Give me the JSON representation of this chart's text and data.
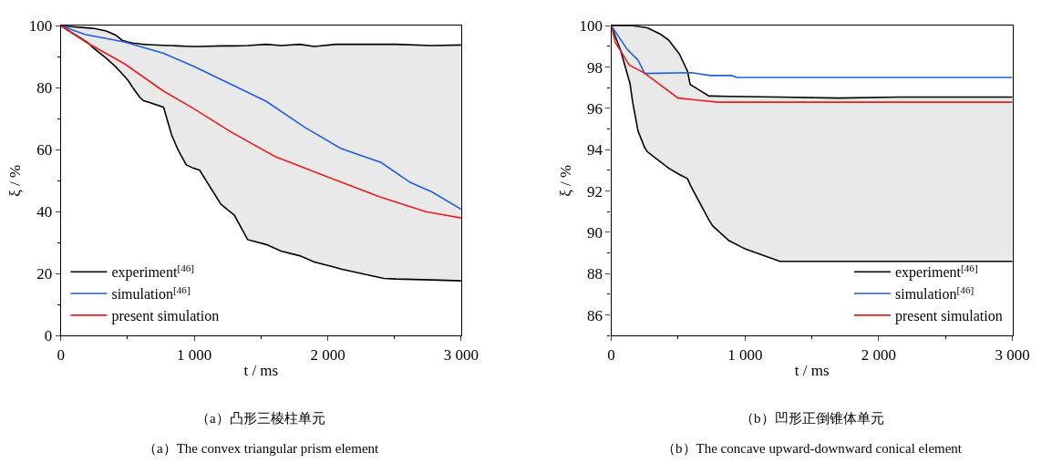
{
  "chart_data": [
    {
      "type": "line",
      "xlabel": "t / ms",
      "ylabel": "ξ / %",
      "xlim": [
        0,
        3000
      ],
      "xticks": [
        0,
        {
          "value": 1000,
          "label": "1 000"
        },
        {
          "value": 2000,
          "label": "2 000"
        },
        {
          "value": 3000,
          "label": "3 000"
        }
      ],
      "ylim": [
        0,
        100
      ],
      "yticks": [
        0,
        20,
        40,
        60,
        80,
        100
      ],
      "legend": "bottom left",
      "line_style": "solid",
      "marker": "none",
      "annotations": [
        "（a）凸形三棱柱单元",
        "（a）The convex triangular prism element"
      ],
      "series": [
        {
          "name": "experiment$^{[46]}$",
          "color": "#000000",
          "x": [
            0,
            200,
            250,
            340,
            410,
            460,
            500,
            540,
            590,
            620,
            660,
            770,
            830,
            880,
            940,
            990,
            1040,
            1200,
            1300,
            1400,
            1540,
            1650,
            1790,
            1900,
            2060,
            2100,
            2420,
            2510,
            2780,
            3000
          ],
          "values": [
            100,
            99.3,
            99.1,
            98.3,
            97,
            95.3,
            94.8,
            94.4,
            94.2,
            94.0,
            93.9,
            93.7,
            93.6,
            93.5,
            93.4,
            93.3,
            93.3,
            93.5,
            93.5,
            93.6,
            94,
            93.6,
            94,
            93.3,
            94,
            94,
            94,
            94,
            93.6,
            93.8
          ],
          "upper": [
            100,
            99.3,
            99.1,
            98.3,
            97,
            95.3,
            94.8,
            94.4,
            94.2,
            94.0,
            93.9,
            93.7,
            93.6,
            93.5,
            93.4,
            93.3,
            93.3,
            93.5,
            93.5,
            93.6,
            94,
            93.6,
            94,
            93.3,
            94,
            94,
            94,
            94,
            93.6,
            93.8
          ],
          "lower": [
            100,
            94.6,
            92.6,
            89.5,
            86.8,
            84.5,
            82.6,
            80,
            77,
            75.8,
            75.3,
            73.7,
            64.8,
            59.8,
            55.1,
            54.1,
            53.4,
            42.4,
            38.9,
            31,
            29.4,
            27.3,
            25.8,
            23.8,
            22,
            21.5,
            18.5,
            18.3,
            18,
            17.7
          ]
        },
        {
          "color": "#000000",
          "x": [
            0,
            200,
            250,
            340,
            410,
            460,
            500,
            540,
            590,
            620,
            660,
            770,
            830,
            880,
            940,
            990,
            1040,
            1200,
            1300,
            1400,
            1540,
            1650,
            1790,
            1900,
            2060,
            2100,
            2420,
            2510,
            2780,
            3000
          ],
          "values": [
            100,
            94.6,
            92.6,
            89.5,
            86.8,
            84.5,
            82.6,
            80,
            77,
            75.8,
            75.3,
            73.7,
            64.8,
            59.8,
            55.1,
            54.1,
            53.4,
            42.4,
            38.9,
            31,
            29.4,
            27.3,
            25.8,
            23.8,
            22,
            21.5,
            18.5,
            18.3,
            18,
            17.7
          ]
        },
        {
          "name": "simulation$^{[46]}$",
          "color": "#1f5fe0",
          "x": [
            0,
            180,
            475,
            770,
            995,
            1290,
            1540,
            1830,
            2100,
            2400,
            2620,
            2780,
            3000
          ],
          "values": [
            100,
            97.2,
            94.8,
            91.1,
            86.9,
            80.8,
            75.6,
            67.2,
            60.4,
            55.9,
            49.4,
            46.4,
            40.8
          ]
        },
        {
          "name": "present simulation",
          "color": "#ee1c1c",
          "x": [
            0,
            200,
            475,
            770,
            995,
            1265,
            1605,
            2055,
            2395,
            2735,
            3000
          ],
          "values": [
            100,
            94.4,
            87.8,
            78.9,
            73.3,
            66.0,
            57.8,
            50.3,
            44.7,
            40.0,
            38.0
          ]
        }
      ]
    },
    {
      "type": "line",
      "xlabel": "t / ms",
      "ylabel": "ξ / %",
      "xlim": [
        0,
        3000
      ],
      "xticks": [
        0,
        {
          "value": 1000,
          "label": "1 000"
        },
        {
          "value": 2000,
          "label": "2 000"
        },
        {
          "value": 3000,
          "label": "3 000"
        }
      ],
      "ylim": [
        85,
        100
      ],
      "yticks": [
        86,
        88,
        90,
        92,
        94,
        96,
        98,
        100
      ],
      "legend": "bottom right",
      "line_style": "solid",
      "marker": "none",
      "annotations": [
        "（b）凹形正倒锥体单元",
        "（b）The concave upward-downward conical element"
      ],
      "series": [
        {
          "name": "experiment$^{[46]}$",
          "color": "#000000",
          "x": [
            0,
            70,
            140,
            160,
            200,
            250,
            270,
            350,
            370,
            430,
            510,
            570,
            590,
            730,
            760,
            880,
            1000,
            1260,
            1700,
            2150,
            3000
          ],
          "values": [
            100,
            100,
            100,
            100,
            99.97,
            99.92,
            99.9,
            99.65,
            99.58,
            99.3,
            98.63,
            97.8,
            97.16,
            96.6,
            96.6,
            96.58,
            96.57,
            96.55,
            96.5,
            96.55,
            96.55
          ],
          "upper": [
            100,
            100,
            100,
            100,
            99.97,
            99.92,
            99.9,
            99.65,
            99.58,
            99.3,
            98.63,
            97.8,
            97.16,
            96.6,
            96.6,
            96.58,
            96.57,
            96.55,
            96.5,
            96.55,
            96.55
          ],
          "lower": [
            100,
            98.8,
            97.2,
            96.3,
            94.9,
            94.1,
            93.9,
            93.5,
            93.4,
            93.1,
            92.8,
            92.6,
            92.3,
            90.6,
            90.3,
            89.6,
            89.2,
            88.6,
            88.6,
            88.6,
            88.6
          ]
        },
        {
          "color": "#000000",
          "x": [
            0,
            70,
            140,
            160,
            200,
            250,
            270,
            350,
            370,
            430,
            510,
            570,
            590,
            730,
            760,
            880,
            1000,
            1260,
            1700,
            2150,
            3000
          ],
          "values": [
            100,
            98.8,
            97.2,
            96.3,
            94.9,
            94.1,
            93.9,
            93.5,
            93.4,
            93.1,
            92.8,
            92.6,
            92.3,
            90.6,
            90.3,
            89.6,
            89.2,
            88.6,
            88.6,
            88.6,
            88.6
          ]
        },
        {
          "name": "simulation$^{[46]}$",
          "color": "#1f5fe0",
          "x": [
            0,
            120,
            200,
            250,
            600,
            740,
            900,
            940,
            3000
          ],
          "values": [
            100,
            98.85,
            98.34,
            97.69,
            97.73,
            97.59,
            97.59,
            97.5,
            97.5
          ]
        },
        {
          "name": "present simulation",
          "color": "#ee1c1c",
          "x": [
            0,
            30,
            135,
            250,
            500,
            795,
            3000
          ],
          "values": [
            100,
            99.2,
            98.1,
            97.7,
            96.5,
            96.3,
            96.3
          ]
        }
      ]
    }
  ]
}
